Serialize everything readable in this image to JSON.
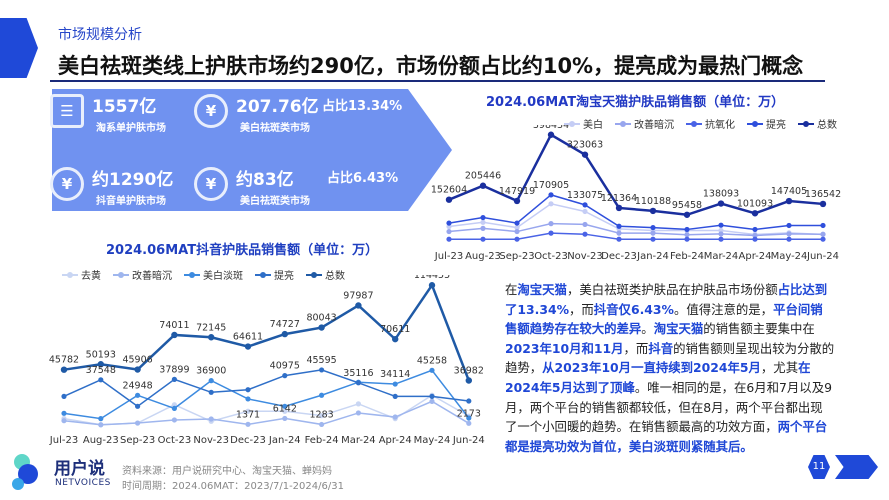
{
  "header": {
    "section": "市场规模分析",
    "title": "美白祛斑类线上护肤市场约290亿，市场份额占比约10%，提亮成为最热门概念"
  },
  "stats": [
    {
      "icon": "cart-icon",
      "value": "1557亿",
      "label": "淘系单护肤市场"
    },
    {
      "icon": "yen-cycle-icon",
      "value": "207.76亿",
      "label": "美白祛斑类市场",
      "share": "占比13.34%"
    },
    {
      "icon": "yen-hand-icon",
      "value": "约1290亿",
      "label": "抖音单护肤市场"
    },
    {
      "icon": "yen-cycle-back-icon",
      "value": "约83亿",
      "label": "美白祛斑类市场",
      "share": "占比6.43%"
    }
  ],
  "chart_data": [
    {
      "type": "line",
      "title": "2024.06MAT淘宝天猫护肤品销售额（单位：万）",
      "categories": [
        "Jul-23",
        "Aug-23",
        "Sep-23",
        "Oct-23",
        "Nov-23",
        "Dec-23",
        "Jan-24",
        "Feb-24",
        "Mar-24",
        "Apr-24",
        "May-24",
        "Jun-24"
      ],
      "legend_position": "top",
      "grid": false,
      "series": [
        {
          "name": "美白",
          "color": "#c5cdf5",
          "values": [
            51000,
            67000,
            47000,
            137000,
            108000,
            42000,
            36000,
            36000,
            36000,
            21000,
            27000,
            21000
          ],
          "labeled": []
        },
        {
          "name": "改善暗沉",
          "color": "#98a6ee",
          "values": [
            32000,
            44000,
            32000,
            62000,
            59000,
            26000,
            26000,
            20000,
            23000,
            17000,
            23000,
            22000
          ],
          "labeled": []
        },
        {
          "name": "抗氧化",
          "color": "#4a63e6",
          "values": [
            3000,
            3000,
            3000,
            26000,
            22000,
            3000,
            3000,
            3000,
            3000,
            3000,
            3000,
            3000
          ],
          "labeled": []
        },
        {
          "name": "提亮",
          "color": "#2f4fdc",
          "values": [
            64000,
            85000,
            64000,
            170905,
            133075,
            52000,
            47000,
            40000,
            56000,
            40000,
            55000,
            55000
          ],
          "labeled": [
            3,
            4
          ]
        },
        {
          "name": "总数",
          "color": "#1a2f9e",
          "values": [
            152604,
            205446,
            147919,
            398434,
            323063,
            121364,
            110188,
            95458,
            138093,
            101093,
            147405,
            136542
          ],
          "labeled": [
            0,
            1,
            2,
            3,
            4,
            5,
            6,
            7,
            8,
            9,
            10,
            11
          ]
        }
      ]
    },
    {
      "type": "line",
      "title": "2024.06MAT抖音护肤品销售额（单位：万）",
      "categories": [
        "Jul-23",
        "Aug-23",
        "Sep-23",
        "Oct-23",
        "Nov-23",
        "Dec-23",
        "Jan-24",
        "Feb-24",
        "Mar-24",
        "Apr-24",
        "May-24",
        "Jun-24"
      ],
      "legend_position": "top",
      "grid": false,
      "series": [
        {
          "name": "去黄",
          "color": "#c9d6f3",
          "values": [
            6000,
            1000,
            2400,
            17300,
            3800,
            12000,
            12000,
            8400,
            18000,
            6000,
            25000,
            8000
          ],
          "labeled": []
        },
        {
          "name": "改善暗沉",
          "color": "#9fb6ee",
          "values": [
            4300,
            1000,
            2400,
            4900,
            5700,
            1371,
            6142,
            1283,
            10600,
            7300,
            20000,
            2173
          ],
          "labeled": [
            5,
            6,
            7,
            11
          ]
        },
        {
          "name": "美白淡斑",
          "color": "#3d8be0",
          "values": [
            10300,
            6000,
            24948,
            14300,
            36900,
            22000,
            16000,
            25000,
            35600,
            34114,
            45258,
            6500
          ],
          "labeled": [
            2,
            4,
            9,
            10
          ]
        },
        {
          "name": "提亮",
          "color": "#2f6fc8",
          "values": [
            24100,
            37548,
            16000,
            37899,
            27400,
            29500,
            40975,
            45595,
            35116,
            24100,
            24100,
            20300
          ],
          "labeled": [
            1,
            3,
            6,
            7,
            8
          ]
        },
        {
          "name": "总数",
          "color": "#1f5aa6",
          "values": [
            45782,
            50193,
            45906,
            74011,
            72145,
            64611,
            74727,
            80043,
            97987,
            70611,
            114455,
            36982
          ],
          "labeled": [
            0,
            1,
            2,
            3,
            4,
            5,
            6,
            7,
            8,
            9,
            10,
            11
          ]
        }
      ]
    }
  ],
  "paragraph": [
    {
      "t": "在"
    },
    {
      "t": "淘宝天猫",
      "hl": true
    },
    {
      "t": "，美白祛斑类护肤品在护肤品市场份额"
    },
    {
      "t": "占比达到了13.34%",
      "hl": true
    },
    {
      "t": "，而"
    },
    {
      "t": "抖音仅6.43%",
      "hl": true
    },
    {
      "t": "。值得注意的是，"
    },
    {
      "t": "平台间销售额趋势存在较大的差异",
      "hl": true
    },
    {
      "t": "。"
    },
    {
      "t": "淘宝天猫",
      "hl": true
    },
    {
      "t": "的销售额主要集中在"
    },
    {
      "t": "2023年10月和11月",
      "hl": true
    },
    {
      "t": "，而"
    },
    {
      "t": "抖音",
      "hl": true
    },
    {
      "t": "的销售额则呈现出较为分散的趋势，"
    },
    {
      "t": "从2023年10月一直持续到2024年5月",
      "hl": true
    },
    {
      "t": "，尤其"
    },
    {
      "t": "在2024年5月达到了顶峰",
      "hl": true
    },
    {
      "t": "。唯一相同的是，在6月和7月以及9月，两个平台的销售额都较低，但在8月，两个平台都出现了一个小回暖的趋势。在销售额最高的功效方面，"
    },
    {
      "t": "两个平台都是提亮功效为首位，美白淡斑则紧随其后。",
      "hl": true
    }
  ],
  "footer": {
    "brand": "用户说",
    "brand_en": "NETVOICES",
    "source": "资料来源：用户说研究中心、淘宝天猫、蝉妈妈",
    "period": "时间周期：2024.06MAT：2023/7/1-2024/6/31",
    "page": "11"
  }
}
